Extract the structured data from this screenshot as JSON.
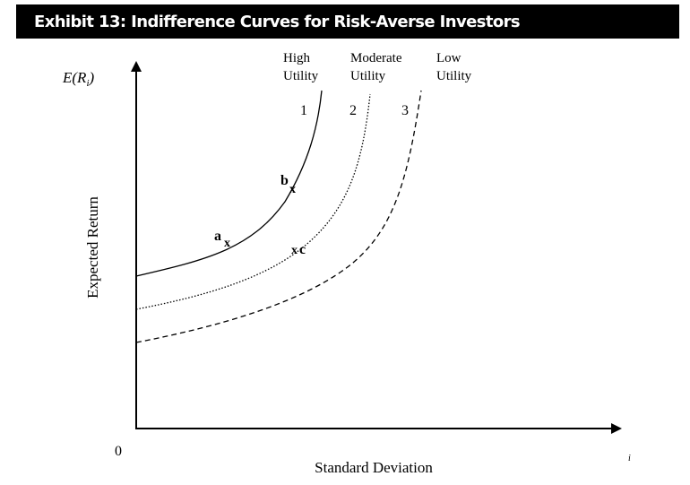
{
  "title": "Exhibit 13: Indifference Curves for Risk-Averse Investors",
  "axes": {
    "y_label": "Expected Return",
    "y_symbol_prefix": "E(R",
    "y_symbol_sub": "i",
    "y_symbol_suffix": ")",
    "x_label": "Standard Deviation",
    "x_subscript": "i",
    "origin": "0"
  },
  "curves": [
    {
      "number": "1",
      "label_top": "High",
      "label_bottom": "Utility",
      "style": "solid"
    },
    {
      "number": "2",
      "label_top": "Moderate",
      "label_bottom": "Utility",
      "style": "dotted"
    },
    {
      "number": "3",
      "label_top": "Low",
      "label_bottom": "Utility",
      "style": "dashed"
    }
  ],
  "points": [
    {
      "letter": "a",
      "mark": "x"
    },
    {
      "letter": "b",
      "mark": "x"
    },
    {
      "letter": "c",
      "mark": "x"
    }
  ],
  "colors": {
    "title_bar": "#000000",
    "title_text": "#ffffff",
    "ink": "#000000"
  }
}
